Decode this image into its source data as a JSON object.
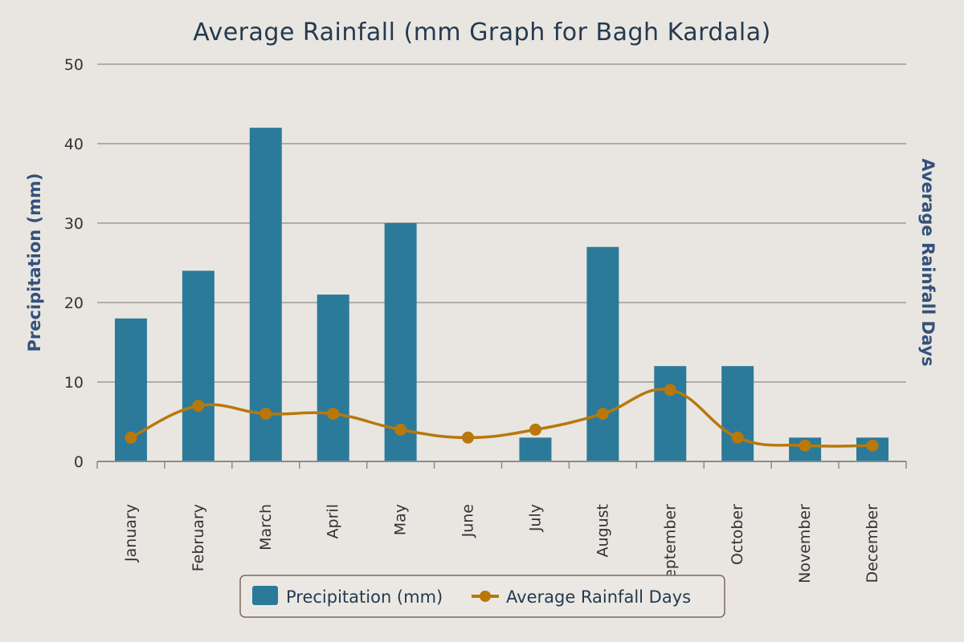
{
  "chart_data": {
    "type": "bar",
    "title": "Average Rainfall (mm Graph for Bagh Kardala)",
    "categories": [
      "January",
      "February",
      "March",
      "April",
      "May",
      "June",
      "July",
      "August",
      "September",
      "October",
      "November",
      "December"
    ],
    "series": [
      {
        "name": "Precipitation (mm)",
        "type": "bar",
        "axis": "left",
        "values": [
          18,
          24,
          42,
          21,
          30,
          0,
          3,
          27,
          12,
          12,
          3,
          3
        ]
      },
      {
        "name": "Average Rainfall Days",
        "type": "line",
        "axis": "right",
        "values": [
          3,
          7,
          6,
          6,
          4,
          3,
          4,
          6,
          9,
          3,
          2,
          2
        ]
      }
    ],
    "ylabel": "Precipitation (mm)",
    "y2label": "Average Rainfall Days",
    "ylim": [
      0,
      50
    ],
    "yticks": [
      0,
      10,
      20,
      30,
      40,
      50
    ],
    "grid": true,
    "legend": "bottom-center",
    "colors": {
      "bar": "#2b7a99",
      "line": "#b8780c",
      "background": "#e9e6e1",
      "grid": "#9a9a9a"
    }
  }
}
